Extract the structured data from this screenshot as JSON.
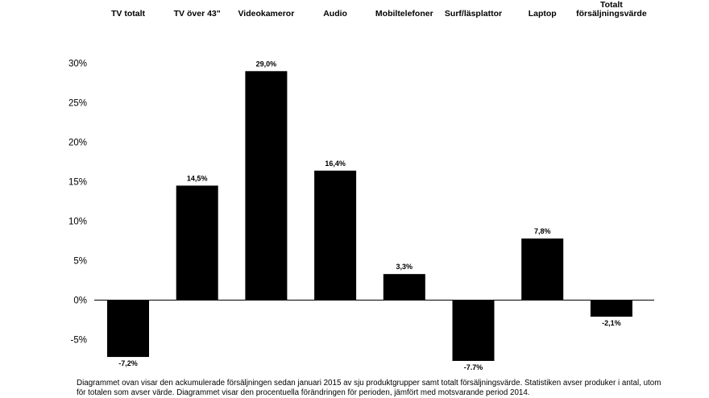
{
  "chart_data": {
    "type": "bar",
    "categories": [
      [
        "TV totalt"
      ],
      [
        "TV över 43\""
      ],
      [
        "Videokameror"
      ],
      [
        "Audio"
      ],
      [
        "Mobiltelefoner"
      ],
      [
        "Surf/läsplattor"
      ],
      [
        "Laptop"
      ],
      [
        "Totalt",
        "försäljningsvärde"
      ]
    ],
    "values": [
      -7.2,
      14.5,
      29.0,
      16.4,
      3.3,
      -7.7,
      7.8,
      -2.1
    ],
    "data_labels": [
      "-7,2%",
      "14,5%",
      "29,0%",
      "16,4%",
      "3,3%",
      "-7.7%",
      "7,8%",
      "-2,1%"
    ],
    "y_ticks": [
      {
        "value": 30,
        "label": "30%"
      },
      {
        "value": 25,
        "label": "25%"
      },
      {
        "value": 20,
        "label": "20%"
      },
      {
        "value": 15,
        "label": "15%"
      },
      {
        "value": 10,
        "label": "10%"
      },
      {
        "value": 5,
        "label": "5%"
      },
      {
        "value": 0,
        "label": "0%"
      },
      {
        "value": -5,
        "label": "-5%"
      }
    ],
    "ylim": [
      -7.7,
      30
    ],
    "title": "",
    "xlabel": "",
    "ylabel": "",
    "grid": false,
    "category_labels_position": "top",
    "bar_color": "#000000"
  },
  "caption": {
    "line1": "Diagrammet ovan visar den ackumulerade försäljningen sedan januari 2015 av sju produktgrupper samt totalt försäljningsvärde.  Statistiken avser produker i antal, utom",
    "line2": "för totalen som avser värde. Diagrammet visar den procentuella förändringen för perioden, jämfört med motsvarande period 2014."
  }
}
